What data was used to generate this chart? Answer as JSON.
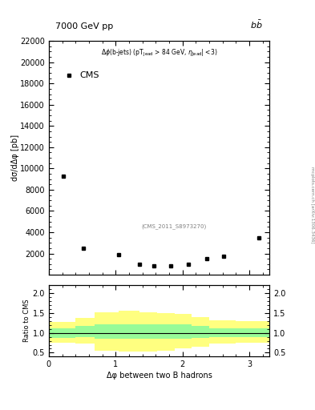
{
  "title_top": "7000 GeV pp",
  "title_right": "b$\\bar{\\rm b}$",
  "cms_label": "CMS",
  "dataset_label": "(CMS_2011_S8973270)",
  "ylabel_main": "dσ/dΔφ [pb]",
  "ylabel_ratio": "Ratio to CMS",
  "xlabel": "Δφ between two B hadrons",
  "watermark": "mcplots.cern.ch [arXiv:1306.3436]",
  "data_x": [
    0.22,
    0.52,
    1.05,
    1.36,
    1.57,
    1.83,
    2.09,
    2.36,
    2.62,
    3.14
  ],
  "data_y": [
    9300,
    2500,
    1900,
    1000,
    800,
    800,
    1000,
    1500,
    1700,
    3500
  ],
  "ylim_main": [
    0,
    22000
  ],
  "yticks_main": [
    2000,
    4000,
    6000,
    8000,
    10000,
    12000,
    14000,
    16000,
    18000,
    20000,
    22000
  ],
  "xlim": [
    0,
    3.3
  ],
  "xticks": [
    0,
    1,
    2,
    3
  ],
  "ylim_ratio": [
    0.4,
    2.2
  ],
  "yticks_ratio": [
    0.5,
    1.0,
    1.5,
    2.0
  ],
  "ratio_x_edges": [
    0.0,
    0.4,
    0.68,
    1.05,
    1.36,
    1.62,
    1.88,
    2.14,
    2.4,
    2.8,
    3.3
  ],
  "ratio_green_lo": [
    0.88,
    0.9,
    0.85,
    0.85,
    0.85,
    0.85,
    0.85,
    0.88,
    0.9,
    0.9
  ],
  "ratio_green_hi": [
    1.12,
    1.18,
    1.22,
    1.22,
    1.22,
    1.22,
    1.22,
    1.18,
    1.12,
    1.12
  ],
  "ratio_yellow_lo": [
    0.75,
    0.73,
    0.55,
    0.52,
    0.52,
    0.55,
    0.6,
    0.65,
    0.73,
    0.76
  ],
  "ratio_yellow_hi": [
    1.28,
    1.38,
    1.52,
    1.55,
    1.52,
    1.5,
    1.48,
    1.4,
    1.32,
    1.3
  ],
  "green_color": "#98fb98",
  "yellow_color": "#ffff80",
  "data_color": "black",
  "background_color": "white"
}
